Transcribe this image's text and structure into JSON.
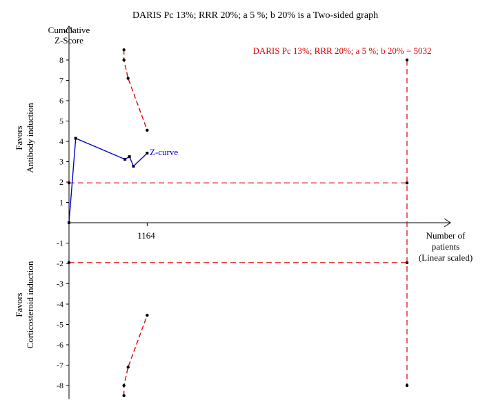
{
  "chart_data": {
    "type": "line",
    "title": "DARIS Pc 13%; RRR 20%; a 5 %; b 20% is a Two-sided graph",
    "ylabel_top": "Cumulative",
    "ylabel_bottom": "Z-Score",
    "xlabel_lines": [
      "Number of",
      "patients",
      "(Linear scaled)"
    ],
    "favors_top": [
      "Favors",
      "Antibody induction"
    ],
    "favors_bottom": [
      "Favors",
      "Corticosteroid induction"
    ],
    "ylim": [
      -8.5,
      8.5
    ],
    "xlim": [
      0,
      5032
    ],
    "y_ticks": [
      8,
      7,
      6,
      5,
      4,
      3,
      2,
      1,
      -1,
      -2,
      -3,
      -4,
      -5,
      -6,
      -7,
      -8
    ],
    "y_tick_labels": [
      "8",
      "7",
      "6",
      "5",
      "4",
      "3",
      "2",
      "1",
      "-1",
      "-2",
      "-3",
      "-4",
      "-5",
      "-6",
      "-7",
      "-8"
    ],
    "x_tick": 1164,
    "x_tick_label": "1164",
    "ris_label": "DARIS Pc 13%; RRR 20%; a 5 %; b 20% = 5032",
    "ris_value": 5032,
    "z_curve": {
      "name": "Z-curve",
      "x": [
        0,
        100,
        833,
        900,
        960,
        1164
      ],
      "y": [
        0,
        4.15,
        3.12,
        3.25,
        2.78,
        3.42
      ]
    },
    "upper_boundary": {
      "x": [
        818,
        818,
        880,
        1164
      ],
      "y": [
        8.5,
        8.0,
        7.1,
        4.55
      ]
    },
    "lower_boundary": {
      "x": [
        818,
        818,
        880,
        1164
      ],
      "y": [
        -8.5,
        -8.0,
        -7.1,
        -4.55
      ]
    },
    "conventional_boundary": 1.96,
    "colors": {
      "z_curve": "#0000cc",
      "boundary": "#dd0000",
      "axis": "#000000"
    }
  }
}
